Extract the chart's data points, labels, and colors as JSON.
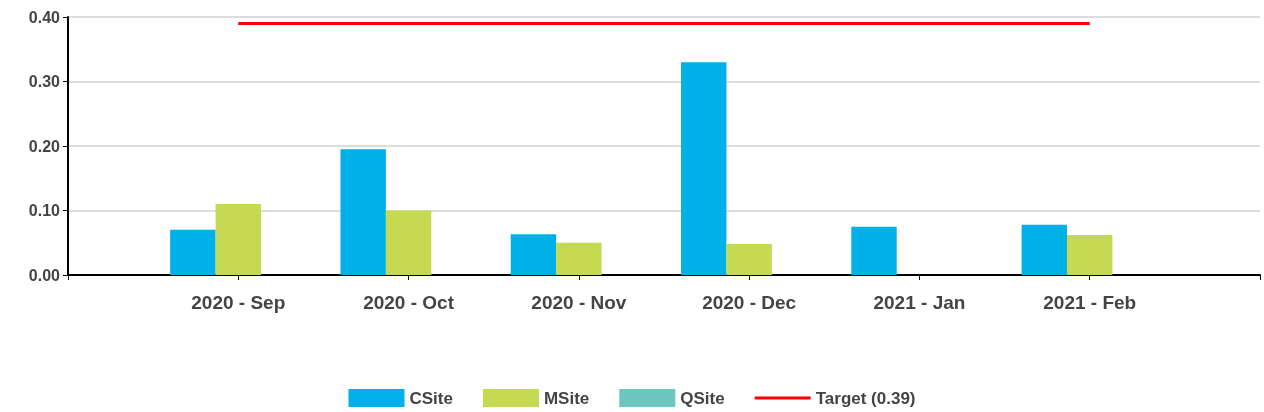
{
  "chart_data": {
    "type": "bar",
    "categories": [
      null,
      "2020 - Sep",
      "2020 - Oct",
      "2020 - Nov",
      "2020 - Dec",
      "2021 - Jan",
      "2021 - Feb",
      null
    ],
    "series": [
      {
        "name": "CSite",
        "color": "#00b0e6",
        "values": [
          null,
          0.07,
          0.195,
          0.063,
          0.33,
          0.075,
          0.078,
          null
        ]
      },
      {
        "name": "MSite",
        "color": "#c5d952",
        "values": [
          null,
          0.11,
          0.1,
          0.05,
          0.048,
          null,
          0.062,
          null
        ]
      },
      {
        "name": "QSite",
        "color": "#6cc7bf",
        "values": [
          null,
          null,
          null,
          null,
          null,
          null,
          null,
          null
        ]
      },
      {
        "name": "Target (0.39)",
        "type": "line",
        "color": "#ff0000",
        "values": [
          null,
          0.39,
          0.39,
          0.39,
          0.39,
          0.39,
          0.39,
          null
        ]
      }
    ],
    "ylim": [
      0,
      0.4
    ],
    "yticks": [
      {
        "value": 0,
        "label": "0.00"
      },
      {
        "value": 0.1,
        "label": "0.10"
      },
      {
        "value": 0.2,
        "label": "0.20"
      },
      {
        "value": 0.3,
        "label": "0.30"
      },
      {
        "value": 0.4,
        "label": "0.40"
      }
    ],
    "grid": "y",
    "legend": "bottom",
    "marker": "none",
    "line_style": "solid"
  }
}
